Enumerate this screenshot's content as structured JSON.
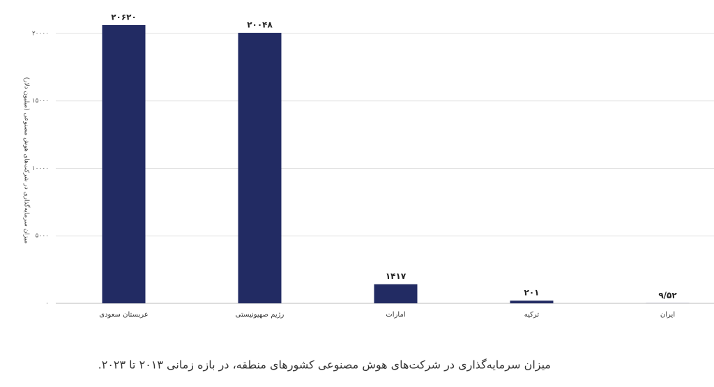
{
  "chart_data": {
    "type": "bar",
    "caption": "میزان سرمایه‌گذاری در شرکت‌های هوش مصنوعی کشورهای منطقه، در بازه زمانی ۲۰۱۳ تا ۲۰۲۳.",
    "y_label": "میزان سرمایه‌گذاری در شرکت‌های هوش مصنوعی (میلیون دلار)",
    "categories": [
      "عربستان سعودی",
      "رژیم صهیونیستی",
      "امارات",
      "ترکیه",
      "ایران"
    ],
    "values": [
      20620,
      20048,
      1417,
      201,
      9.52
    ],
    "value_labels": [
      "۲۰۶۲۰",
      "۲۰۰۴۸",
      "۱۴۱۷",
      "۲۰۱",
      "۹/۵۲"
    ],
    "color": "#222b63",
    "ylim": [
      0,
      21600
    ],
    "yticks": [
      {
        "value": 0,
        "label": "۰"
      },
      {
        "value": 5000,
        "label": "۵۰۰۰"
      },
      {
        "value": 10000,
        "label": "۱۰۰۰۰"
      },
      {
        "value": 15000,
        "label": "۱۵۰۰۰"
      },
      {
        "value": 20000,
        "label": "۲۰۰۰۰"
      }
    ],
    "grid": true
  }
}
